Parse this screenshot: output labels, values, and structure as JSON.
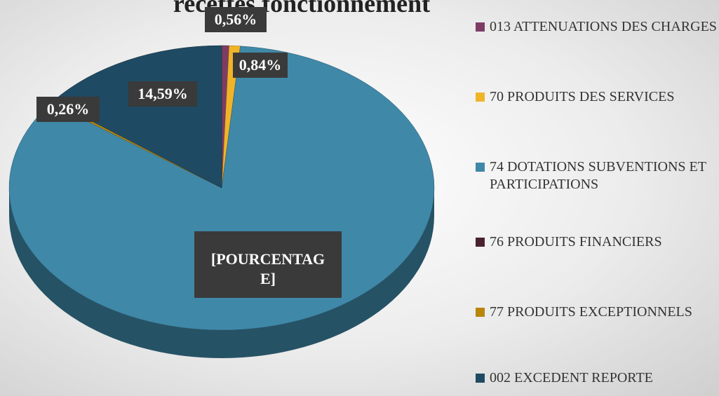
{
  "chart_data": {
    "type": "pie3d",
    "title": "recettes fonctionnement",
    "categories": [
      "013 ATTENUATIONS DES CHARGES",
      "70 PRODUITS DES SERVICES",
      "74 DOTATIONS SUBVENTIONS ET PARTICIPATIONS",
      "76 PRODUITS FINANCIERS",
      "77 PRODUITS EXCEPTIONNELS",
      "002 EXCEDENT REPORTE"
    ],
    "values": [
      0.56,
      0.84,
      83.75,
      0,
      0.26,
      14.59
    ],
    "value_labels": [
      "0,56%",
      "0,84%",
      "[POURCENTAGE]",
      null,
      "0,26%",
      "14,59%"
    ],
    "colors": [
      "#7d3c64",
      "#f0b429",
      "#3f88a8",
      "#4a2131",
      "#b8860b",
      "#1f4a63"
    ],
    "legend": "right"
  }
}
